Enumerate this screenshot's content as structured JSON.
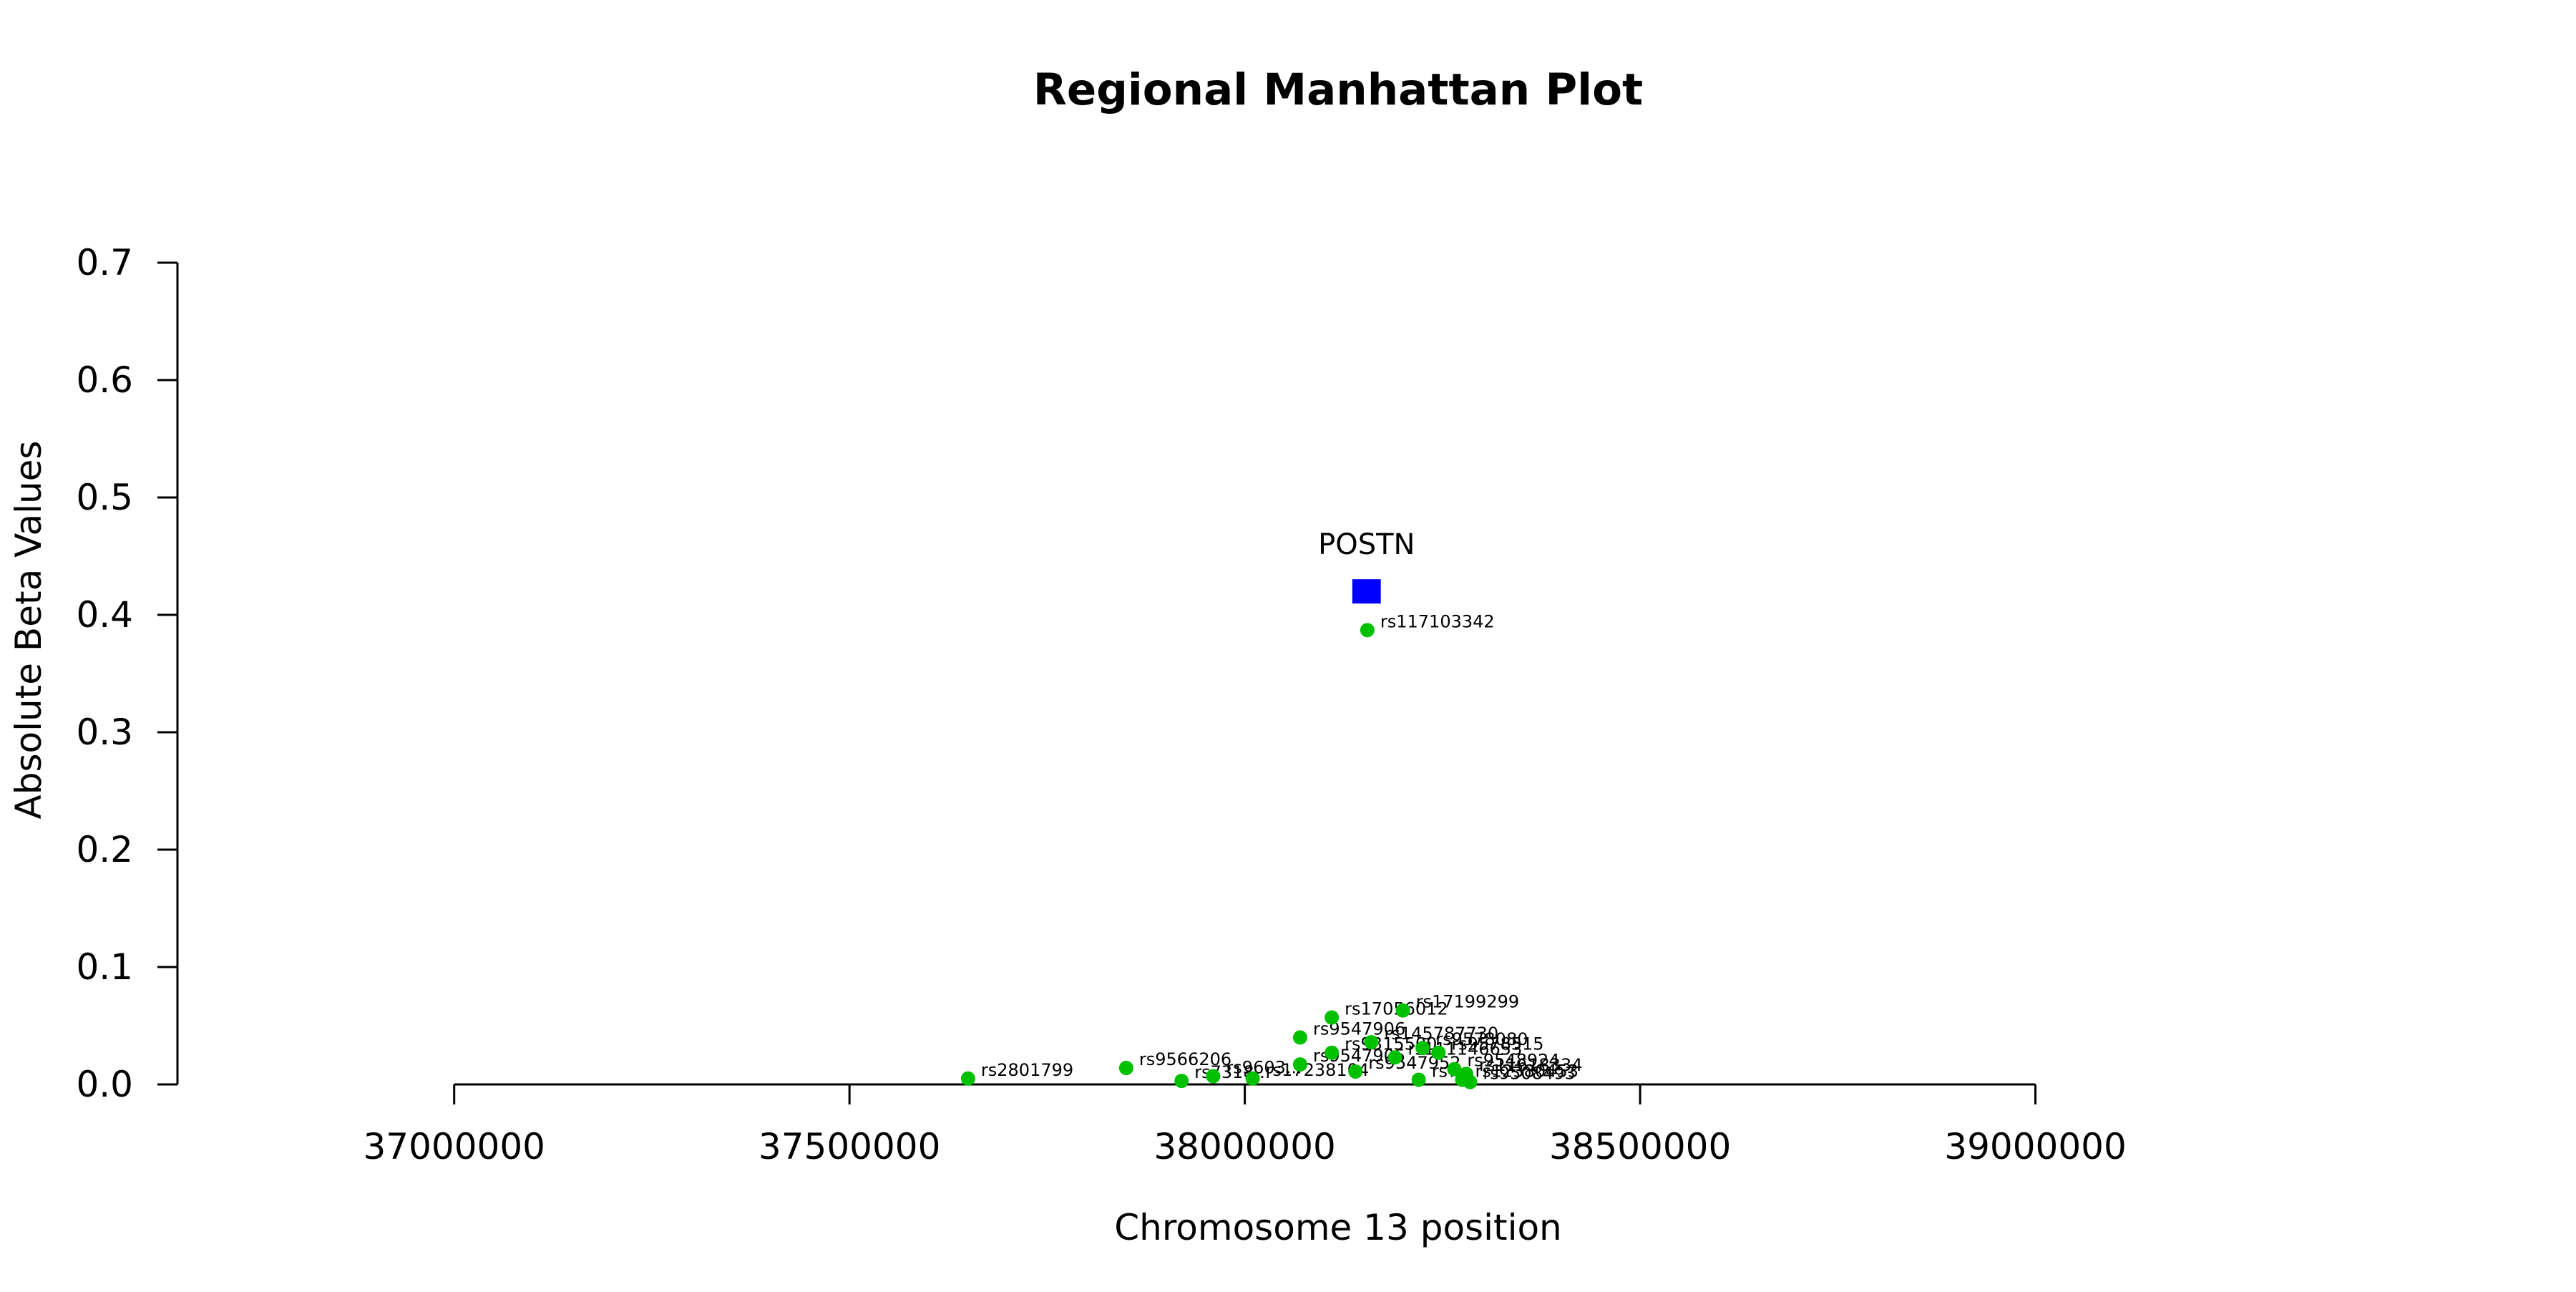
{
  "chart_data": {
    "type": "scatter",
    "title": "Regional Manhattan Plot",
    "xlabel": "Chromosome 13 position",
    "ylabel": "Absolute Beta Values",
    "xlim": [
      36650000,
      39300000
    ],
    "ylim": [
      0,
      0.7
    ],
    "x_ticks": [
      "37000000",
      "37500000",
      "38000000",
      "38500000",
      "39000000"
    ],
    "y_ticks": [
      "0.0",
      "0.1",
      "0.2",
      "0.3",
      "0.4",
      "0.5",
      "0.6",
      "0.7"
    ],
    "grid": false,
    "point_color": "#00c000",
    "gene_color": "#0000ff",
    "points": [
      {
        "label": "rs2801799",
        "x": 37650000,
        "y": 0.005
      },
      {
        "label": "rs9566206",
        "x": 37850000,
        "y": 0.014
      },
      {
        "label": "rs7318...",
        "x": 37920000,
        "y": 0.003
      },
      {
        "label": "rs9603...",
        "x": 37960000,
        "y": 0.007
      },
      {
        "label": "rs17238104",
        "x": 38010000,
        "y": 0.005
      },
      {
        "label": "rs9547906",
        "x": 38070000,
        "y": 0.04
      },
      {
        "label": "rs9547905",
        "x": 38070000,
        "y": 0.017
      },
      {
        "label": "rs17056012",
        "x": 38110000,
        "y": 0.057
      },
      {
        "label": "rs9315500",
        "x": 38110000,
        "y": 0.027
      },
      {
        "label": "rs9547952",
        "x": 38140000,
        "y": 0.011
      },
      {
        "label": "rs145787730",
        "x": 38160000,
        "y": 0.036
      },
      {
        "label": "rs117103342",
        "x": 38155000,
        "y": 0.387
      },
      {
        "label": "rs17199299",
        "x": 38200000,
        "y": 0.063
      },
      {
        "label": "rs111146653",
        "x": 38190000,
        "y": 0.023
      },
      {
        "label": "rs9578080",
        "x": 38225000,
        "y": 0.031
      },
      {
        "label": "rs7...",
        "x": 38220000,
        "y": 0.004
      },
      {
        "label": "rs9578515",
        "x": 38245000,
        "y": 0.027
      },
      {
        "label": "rs9548924",
        "x": 38265000,
        "y": 0.013
      },
      {
        "label": "rs11618334",
        "x": 38280000,
        "y": 0.009
      },
      {
        "label": "rs12380453",
        "x": 38275000,
        "y": 0.004
      },
      {
        "label": "rs9508493",
        "x": 38285000,
        "y": 0.002
      }
    ],
    "gene": {
      "label": "POSTN",
      "x_start": 38136000,
      "x_end": 38172000,
      "y": 0.42
    }
  }
}
